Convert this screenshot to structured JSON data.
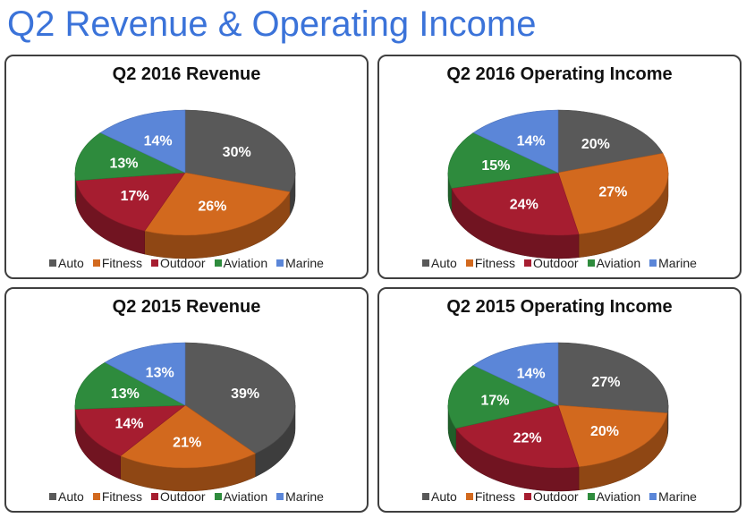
{
  "page_title": "Q2 Revenue & Operating Income",
  "colors": {
    "Auto": "#595959",
    "Fitness": "#d2691e",
    "Outdoor": "#a61d30",
    "Aviation": "#2e8b3d",
    "Marine": "#5b86d8"
  },
  "legend_labels": [
    "Auto",
    "Fitness",
    "Outdoor",
    "Aviation",
    "Marine"
  ],
  "chart_data": [
    {
      "type": "pie",
      "title": "Q2 2016 Revenue",
      "categories": [
        "Auto",
        "Fitness",
        "Outdoor",
        "Aviation",
        "Marine"
      ],
      "values": [
        30,
        26,
        17,
        13,
        14
      ],
      "labels": [
        "30%",
        "26%",
        "17%",
        "13%",
        "14%"
      ],
      "legend_position": "bottom"
    },
    {
      "type": "pie",
      "title": "Q2 2016 Operating Income",
      "categories": [
        "Auto",
        "Fitness",
        "Outdoor",
        "Aviation",
        "Marine"
      ],
      "values": [
        20,
        27,
        24,
        15,
        14
      ],
      "labels": [
        "20%",
        "27%",
        "24%",
        "15%",
        "14%"
      ],
      "legend_position": "bottom"
    },
    {
      "type": "pie",
      "title": "Q2 2015 Revenue",
      "categories": [
        "Auto",
        "Fitness",
        "Outdoor",
        "Aviation",
        "Marine"
      ],
      "values": [
        39,
        21,
        14,
        13,
        13
      ],
      "labels": [
        "39%",
        "21%",
        "14%",
        "13%",
        "13%"
      ],
      "legend_position": "bottom"
    },
    {
      "type": "pie",
      "title": "Q2 2015 Operating Income",
      "categories": [
        "Auto",
        "Fitness",
        "Outdoor",
        "Aviation",
        "Marine"
      ],
      "values": [
        27,
        20,
        22,
        17,
        14
      ],
      "labels": [
        "27%",
        "20%",
        "22%",
        "17%",
        "14%"
      ],
      "legend_position": "bottom"
    }
  ]
}
